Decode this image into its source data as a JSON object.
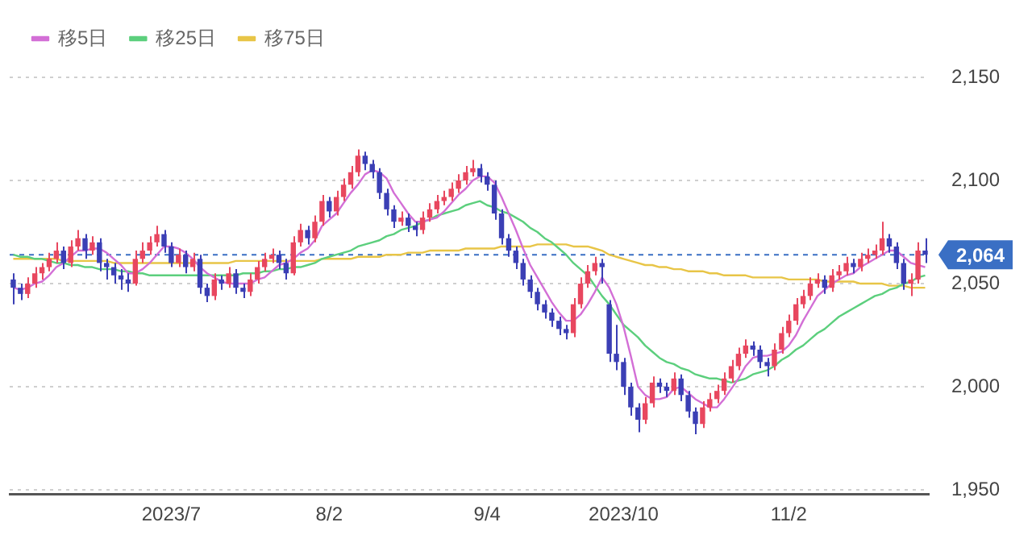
{
  "chart_data": {
    "type": "candlestick",
    "categories": [
      null,
      null,
      null,
      null,
      null,
      null,
      null,
      null,
      null,
      null,
      null,
      null,
      null,
      null,
      null,
      null,
      null,
      null,
      null,
      null,
      null,
      null,
      "2023/7",
      null,
      null,
      null,
      null,
      null,
      null,
      null,
      null,
      null,
      null,
      null,
      null,
      null,
      null,
      null,
      null,
      null,
      null,
      null,
      null,
      null,
      "8/2",
      null,
      null,
      null,
      null,
      null,
      null,
      null,
      null,
      null,
      null,
      null,
      null,
      null,
      null,
      null,
      null,
      null,
      null,
      null,
      null,
      null,
      "9/4",
      null,
      null,
      null,
      null,
      null,
      null,
      null,
      null,
      null,
      null,
      null,
      null,
      null,
      null,
      null,
      null,
      null,
      null,
      "2023/10",
      null,
      null,
      null,
      null,
      null,
      null,
      null,
      null,
      null,
      null,
      null,
      null,
      null,
      null,
      null,
      null,
      null,
      null,
      null,
      null,
      null,
      null,
      "11/2",
      null,
      null,
      null,
      null,
      null,
      null,
      null,
      null,
      null,
      null,
      null,
      null,
      null,
      null,
      null,
      null,
      null,
      null,
      null
    ],
    "ohlc": [
      [
        2052,
        2055,
        2040,
        2048
      ],
      [
        2048,
        2050,
        2042,
        2045
      ],
      [
        2045,
        2053,
        2043,
        2050
      ],
      [
        2050,
        2058,
        2048,
        2055
      ],
      [
        2055,
        2060,
        2052,
        2058
      ],
      [
        2058,
        2065,
        2056,
        2062
      ],
      [
        2062,
        2070,
        2060,
        2066
      ],
      [
        2066,
        2068,
        2057,
        2060
      ],
      [
        2060,
        2071,
        2058,
        2068
      ],
      [
        2068,
        2076,
        2066,
        2072
      ],
      [
        2072,
        2074,
        2062,
        2066
      ],
      [
        2066,
        2073,
        2064,
        2070
      ],
      [
        2070,
        2072,
        2056,
        2060
      ],
      [
        2060,
        2062,
        2052,
        2058
      ],
      [
        2058,
        2060,
        2050,
        2054
      ],
      [
        2054,
        2057,
        2047,
        2052
      ],
      [
        2052,
        2055,
        2046,
        2050
      ],
      [
        2050,
        2066,
        2049,
        2062
      ],
      [
        2062,
        2070,
        2060,
        2066
      ],
      [
        2066,
        2073,
        2064,
        2070
      ],
      [
        2070,
        2078,
        2068,
        2074
      ],
      [
        2074,
        2076,
        2065,
        2068
      ],
      [
        2068,
        2070,
        2058,
        2060
      ],
      [
        2060,
        2067,
        2058,
        2064
      ],
      [
        2064,
        2066,
        2055,
        2058
      ],
      [
        2058,
        2065,
        2056,
        2062
      ],
      [
        2062,
        2064,
        2045,
        2048
      ],
      [
        2048,
        2050,
        2041,
        2044
      ],
      [
        2044,
        2055,
        2042,
        2052
      ],
      [
        2052,
        2054,
        2047,
        2050
      ],
      [
        2050,
        2058,
        2048,
        2055
      ],
      [
        2055,
        2057,
        2045,
        2048
      ],
      [
        2048,
        2050,
        2043,
        2046
      ],
      [
        2046,
        2055,
        2044,
        2052
      ],
      [
        2052,
        2061,
        2050,
        2058
      ],
      [
        2058,
        2065,
        2056,
        2062
      ],
      [
        2062,
        2067,
        2060,
        2064
      ],
      [
        2064,
        2066,
        2057,
        2060
      ],
      [
        2060,
        2062,
        2052,
        2055
      ],
      [
        2055,
        2073,
        2054,
        2070
      ],
      [
        2070,
        2079,
        2068,
        2076
      ],
      [
        2076,
        2078,
        2069,
        2072
      ],
      [
        2072,
        2083,
        2070,
        2080
      ],
      [
        2080,
        2093,
        2078,
        2090
      ],
      [
        2090,
        2092,
        2082,
        2085
      ],
      [
        2085,
        2095,
        2083,
        2092
      ],
      [
        2092,
        2101,
        2090,
        2098
      ],
      [
        2098,
        2107,
        2096,
        2104
      ],
      [
        2104,
        2115,
        2102,
        2112
      ],
      [
        2112,
        2114,
        2105,
        2108
      ],
      [
        2108,
        2110,
        2101,
        2104
      ],
      [
        2104,
        2106,
        2091,
        2094
      ],
      [
        2094,
        2096,
        2083,
        2086
      ],
      [
        2086,
        2088,
        2077,
        2080
      ],
      [
        2080,
        2085,
        2078,
        2082
      ],
      [
        2082,
        2084,
        2075,
        2078
      ],
      [
        2078,
        2080,
        2073,
        2076
      ],
      [
        2076,
        2085,
        2074,
        2082
      ],
      [
        2082,
        2089,
        2080,
        2086
      ],
      [
        2086,
        2093,
        2084,
        2090
      ],
      [
        2090,
        2095,
        2088,
        2092
      ],
      [
        2092,
        2099,
        2090,
        2096
      ],
      [
        2096,
        2103,
        2094,
        2100
      ],
      [
        2100,
        2107,
        2098,
        2104
      ],
      [
        2104,
        2110,
        2102,
        2106
      ],
      [
        2106,
        2108,
        2099,
        2102
      ],
      [
        2102,
        2104,
        2095,
        2098
      ],
      [
        2098,
        2100,
        2081,
        2084
      ],
      [
        2084,
        2086,
        2069,
        2072
      ],
      [
        2072,
        2074,
        2063,
        2066
      ],
      [
        2066,
        2068,
        2057,
        2060
      ],
      [
        2060,
        2062,
        2049,
        2052
      ],
      [
        2052,
        2054,
        2043,
        2046
      ],
      [
        2046,
        2048,
        2037,
        2040
      ],
      [
        2040,
        2042,
        2033,
        2036
      ],
      [
        2036,
        2038,
        2029,
        2032
      ],
      [
        2032,
        2034,
        2025,
        2028
      ],
      [
        2028,
        2030,
        2023,
        2026
      ],
      [
        2026,
        2043,
        2024,
        2040
      ],
      [
        2040,
        2053,
        2038,
        2050
      ],
      [
        2050,
        2059,
        2048,
        2056
      ],
      [
        2056,
        2063,
        2054,
        2060
      ],
      [
        2060,
        2062,
        2050,
        2058
      ],
      [
        2040,
        2042,
        2012,
        2016
      ],
      [
        2016,
        2030,
        2008,
        2012
      ],
      [
        2012,
        2014,
        1996,
        2000
      ],
      [
        2000,
        2002,
        1986,
        1990
      ],
      [
        1990,
        1992,
        1978,
        1984
      ],
      [
        1984,
        1995,
        1982,
        1992
      ],
      [
        1992,
        2005,
        1990,
        2002
      ],
      [
        2002,
        2004,
        1997,
        2000
      ],
      [
        2000,
        2002,
        1995,
        1998
      ],
      [
        1998,
        2007,
        1996,
        2004
      ],
      [
        2004,
        2006,
        1993,
        1996
      ],
      [
        1996,
        1998,
        1985,
        1988
      ],
      [
        1988,
        1990,
        1977,
        1982
      ],
      [
        1982,
        1993,
        1980,
        1990
      ],
      [
        1990,
        1997,
        1988,
        1994
      ],
      [
        1994,
        2001,
        1992,
        1998
      ],
      [
        1998,
        2007,
        1996,
        2004
      ],
      [
        2004,
        2013,
        2002,
        2010
      ],
      [
        2010,
        2019,
        2008,
        2016
      ],
      [
        2016,
        2023,
        2014,
        2020
      ],
      [
        2020,
        2022,
        2015,
        2018
      ],
      [
        2018,
        2020,
        2009,
        2012
      ],
      [
        2012,
        2014,
        2005,
        2010
      ],
      [
        2010,
        2021,
        2008,
        2018
      ],
      [
        2018,
        2029,
        2016,
        2026
      ],
      [
        2026,
        2035,
        2024,
        2032
      ],
      [
        2032,
        2043,
        2030,
        2040
      ],
      [
        2040,
        2047,
        2038,
        2044
      ],
      [
        2044,
        2053,
        2042,
        2050
      ],
      [
        2050,
        2055,
        2048,
        2052
      ],
      [
        2052,
        2054,
        2045,
        2048
      ],
      [
        2048,
        2057,
        2046,
        2054
      ],
      [
        2054,
        2059,
        2052,
        2056
      ],
      [
        2056,
        2063,
        2054,
        2060
      ],
      [
        2060,
        2062,
        2055,
        2058
      ],
      [
        2058,
        2065,
        2056,
        2062
      ],
      [
        2062,
        2067,
        2060,
        2064
      ],
      [
        2064,
        2069,
        2062,
        2066
      ],
      [
        2066,
        2080,
        2064,
        2072
      ],
      [
        2072,
        2074,
        2065,
        2068
      ],
      [
        2068,
        2070,
        2057,
        2060
      ],
      [
        2060,
        2062,
        2047,
        2050
      ],
      [
        2050,
        2055,
        2044,
        2052
      ],
      [
        2052,
        2070,
        2050,
        2066
      ],
      [
        2066,
        2072,
        2060,
        2064
      ]
    ],
    "colors": [
      "#3b3fb5",
      "#3b3fb5",
      "#e8475f",
      "#e8475f",
      "#e8475f",
      "#e8475f",
      "#e8475f",
      "#3b3fb5",
      "#e8475f",
      "#e8475f",
      "#3b3fb5",
      "#e8475f",
      "#3b3fb5",
      "#3b3fb5",
      "#3b3fb5",
      "#3b3fb5",
      "#3b3fb5",
      "#e8475f",
      "#e8475f",
      "#e8475f",
      "#e8475f",
      "#3b3fb5",
      "#3b3fb5",
      "#e8475f",
      "#3b3fb5",
      "#e8475f",
      "#3b3fb5",
      "#3b3fb5",
      "#e8475f",
      "#3b3fb5",
      "#e8475f",
      "#3b3fb5",
      "#3b3fb5",
      "#e8475f",
      "#e8475f",
      "#e8475f",
      "#e8475f",
      "#3b3fb5",
      "#3b3fb5",
      "#e8475f",
      "#e8475f",
      "#3b3fb5",
      "#e8475f",
      "#e8475f",
      "#3b3fb5",
      "#e8475f",
      "#e8475f",
      "#e8475f",
      "#e8475f",
      "#3b3fb5",
      "#3b3fb5",
      "#3b3fb5",
      "#3b3fb5",
      "#3b3fb5",
      "#e8475f",
      "#3b3fb5",
      "#3b3fb5",
      "#e8475f",
      "#e8475f",
      "#e8475f",
      "#e8475f",
      "#e8475f",
      "#e8475f",
      "#e8475f",
      "#e8475f",
      "#3b3fb5",
      "#3b3fb5",
      "#3b3fb5",
      "#3b3fb5",
      "#3b3fb5",
      "#3b3fb5",
      "#3b3fb5",
      "#3b3fb5",
      "#3b3fb5",
      "#3b3fb5",
      "#3b3fb5",
      "#3b3fb5",
      "#3b3fb5",
      "#e8475f",
      "#e8475f",
      "#e8475f",
      "#e8475f",
      "#3b3fb5",
      "#3b3fb5",
      "#3b3fb5",
      "#3b3fb5",
      "#3b3fb5",
      "#3b3fb5",
      "#e8475f",
      "#e8475f",
      "#3b3fb5",
      "#3b3fb5",
      "#e8475f",
      "#3b3fb5",
      "#3b3fb5",
      "#3b3fb5",
      "#e8475f",
      "#e8475f",
      "#e8475f",
      "#e8475f",
      "#e8475f",
      "#e8475f",
      "#e8475f",
      "#3b3fb5",
      "#3b3fb5",
      "#3b3fb5",
      "#e8475f",
      "#e8475f",
      "#e8475f",
      "#e8475f",
      "#e8475f",
      "#e8475f",
      "#e8475f",
      "#3b3fb5",
      "#e8475f",
      "#e8475f",
      "#e8475f",
      "#3b3fb5",
      "#e8475f",
      "#e8475f",
      "#e8475f",
      "#e8475f",
      "#3b3fb5",
      "#3b3fb5",
      "#3b3fb5",
      "#e8475f",
      "#e8475f",
      "#3b3fb5"
    ],
    "series": [
      {
        "name": "移5日",
        "type": "line",
        "color": "#d36fd6",
        "values": [
          2048,
          2047,
          2048,
          2050,
          2051,
          2054,
          2058,
          2060,
          2063,
          2066,
          2066,
          2067,
          2067,
          2065,
          2062,
          2059,
          2055,
          2055,
          2057,
          2060,
          2064,
          2068,
          2068,
          2067,
          2065,
          2062,
          2058,
          2055,
          2053,
          2051,
          2050,
          2050,
          2050,
          2050,
          2052,
          2053,
          2056,
          2059,
          2060,
          2062,
          2065,
          2067,
          2071,
          2078,
          2081,
          2084,
          2089,
          2094,
          2098,
          2103,
          2105,
          2104,
          2101,
          2094,
          2089,
          2084,
          2080,
          2080,
          2081,
          2082,
          2085,
          2089,
          2093,
          2096,
          2100,
          2102,
          2102,
          2099,
          2092,
          2084,
          2076,
          2067,
          2059,
          2053,
          2047,
          2041,
          2036,
          2032,
          2032,
          2035,
          2040,
          2046,
          2053,
          2048,
          2040,
          2029,
          2015,
          2000,
          1996,
          1994,
          1994,
          1995,
          1999,
          2000,
          1997,
          1994,
          1992,
          1990,
          1990,
          1994,
          1999,
          2004,
          2010,
          2014,
          2015,
          2015,
          2016,
          2017,
          2020,
          2025,
          2032,
          2038,
          2044,
          2047,
          2050,
          2052,
          2054,
          2055,
          2058,
          2060,
          2062,
          2064,
          2066,
          2066,
          2063,
          2060,
          2059,
          2058
        ]
      },
      {
        "name": "移25日",
        "type": "line",
        "color": "#5ccf7d",
        "values": [
          2064,
          2063,
          2063,
          2062,
          2062,
          2061,
          2060,
          2060,
          2059,
          2059,
          2058,
          2058,
          2057,
          2057,
          2057,
          2056,
          2056,
          2055,
          2055,
          2054,
          2054,
          2054,
          2054,
          2054,
          2054,
          2054,
          2054,
          2054,
          2054,
          2054,
          2054,
          2054,
          2055,
          2055,
          2055,
          2056,
          2056,
          2057,
          2057,
          2058,
          2058,
          2059,
          2060,
          2062,
          2063,
          2064,
          2065,
          2066,
          2068,
          2069,
          2070,
          2071,
          2073,
          2074,
          2076,
          2077,
          2078,
          2080,
          2081,
          2083,
          2084,
          2085,
          2086,
          2088,
          2089,
          2090,
          2088,
          2087,
          2085,
          2084,
          2082,
          2080,
          2077,
          2075,
          2072,
          2070,
          2067,
          2064,
          2060,
          2057,
          2054,
          2049,
          2044,
          2040,
          2035,
          2030,
          2027,
          2024,
          2020,
          2017,
          2014,
          2012,
          2011,
          2009,
          2008,
          2006,
          2005,
          2004,
          2004,
          2003,
          2002,
          2003,
          2004,
          2006,
          2007,
          2008,
          2010,
          2013,
          2015,
          2018,
          2020,
          2023,
          2026,
          2028,
          2031,
          2034,
          2036,
          2038,
          2040,
          2042,
          2044,
          2045,
          2047,
          2048,
          2050,
          2051,
          2053,
          2054
        ]
      },
      {
        "name": "移75日",
        "type": "line",
        "color": "#e8c547",
        "values": [
          2062,
          2062,
          2062,
          2062,
          2062,
          2062,
          2062,
          2061,
          2061,
          2061,
          2061,
          2061,
          2061,
          2061,
          2060,
          2060,
          2060,
          2060,
          2060,
          2060,
          2060,
          2060,
          2060,
          2060,
          2060,
          2060,
          2060,
          2060,
          2060,
          2060,
          2060,
          2061,
          2061,
          2061,
          2061,
          2061,
          2061,
          2061,
          2061,
          2061,
          2061,
          2061,
          2061,
          2062,
          2062,
          2062,
          2062,
          2062,
          2063,
          2063,
          2063,
          2063,
          2064,
          2064,
          2064,
          2065,
          2065,
          2065,
          2066,
          2066,
          2066,
          2066,
          2066,
          2067,
          2067,
          2067,
          2067,
          2067,
          2068,
          2068,
          2068,
          2068,
          2068,
          2069,
          2069,
          2069,
          2069,
          2069,
          2068,
          2068,
          2068,
          2067,
          2066,
          2064,
          2063,
          2062,
          2061,
          2060,
          2059,
          2059,
          2058,
          2058,
          2057,
          2057,
          2056,
          2056,
          2056,
          2055,
          2055,
          2054,
          2054,
          2054,
          2054,
          2053,
          2053,
          2053,
          2053,
          2053,
          2052,
          2052,
          2052,
          2052,
          2052,
          2051,
          2051,
          2051,
          2051,
          2051,
          2050,
          2050,
          2050,
          2050,
          2049,
          2049,
          2049,
          2048,
          2048,
          2048
        ]
      }
    ],
    "ylim": [
      1948,
      2150
    ],
    "yticks": [
      {
        "value": 1950,
        "label": "1,950"
      },
      {
        "value": 2000,
        "label": "2,000"
      },
      {
        "value": 2050,
        "label": "2,050"
      },
      {
        "value": 2100,
        "label": "2,100"
      },
      {
        "value": 2150,
        "label": "2,150"
      }
    ],
    "ref_lines": [
      {
        "axis": "y",
        "value": 2064,
        "label": "2,064",
        "color": "#3a6fc4",
        "line_style": "dashed"
      }
    ],
    "grid": "y",
    "legend": "top left",
    "marker": "none"
  }
}
